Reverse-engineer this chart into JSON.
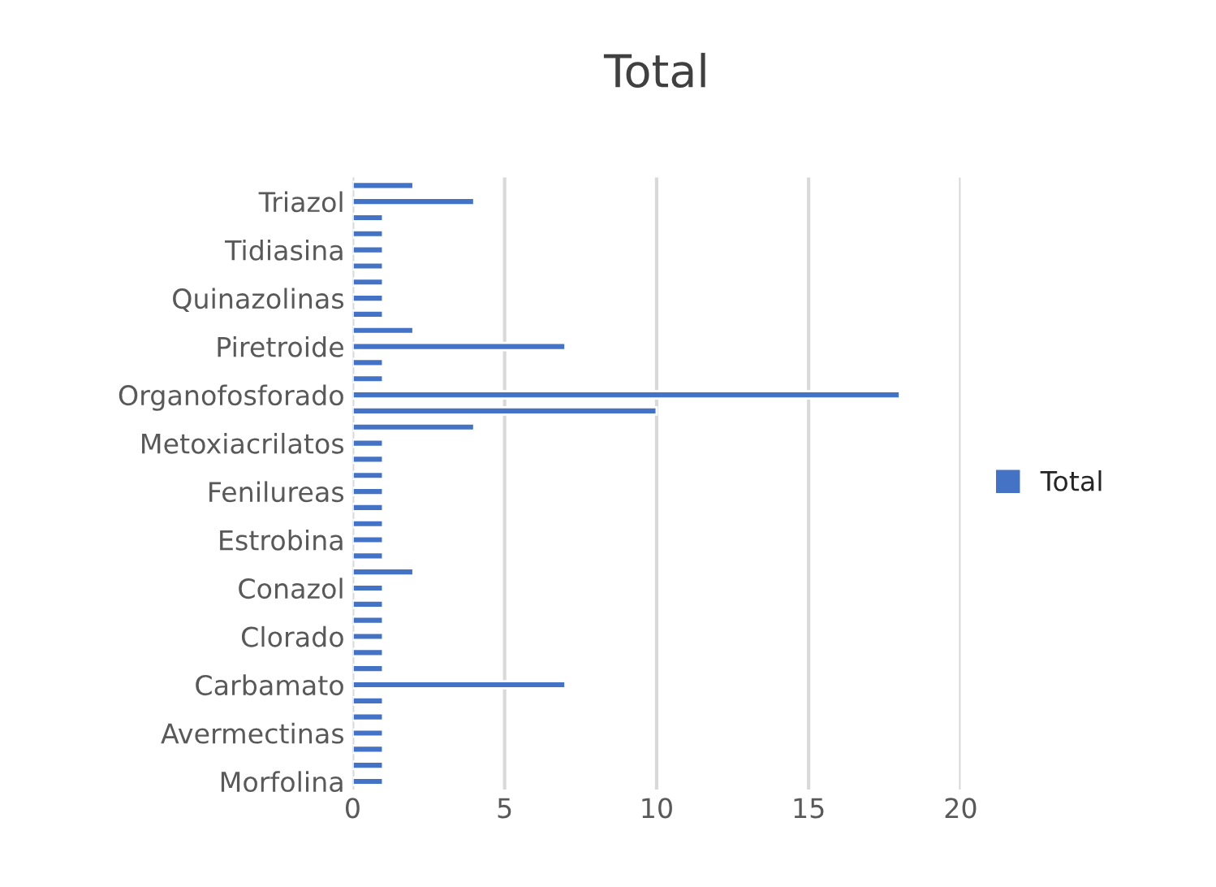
{
  "chart_data": {
    "type": "bar",
    "orientation": "horizontal",
    "title": "Total",
    "categories": [
      null,
      "Triazol",
      null,
      null,
      "Tidiasina",
      null,
      null,
      "Quinazolinas",
      null,
      null,
      "Piretroide",
      null,
      null,
      "Organofosforado",
      null,
      null,
      "Metoxiacrilatos",
      null,
      null,
      "Fenilureas",
      null,
      null,
      "Estrobina",
      null,
      null,
      "Conazol",
      null,
      null,
      "Clorado",
      null,
      null,
      "Carbamato",
      null,
      null,
      "Avermectinas",
      null,
      null,
      "Morfolina"
    ],
    "series": [
      {
        "name": "Total",
        "color": "#4472c4",
        "values": [
          2,
          4,
          1,
          1,
          1,
          1,
          1,
          1,
          1,
          2,
          7,
          1,
          1,
          18,
          10,
          4,
          1,
          1,
          1,
          1,
          1,
          1,
          1,
          1,
          2,
          1,
          1,
          1,
          1,
          1,
          1,
          7,
          1,
          1,
          1,
          1,
          1,
          1
        ]
      }
    ],
    "xlim": [
      0,
      20
    ],
    "xticks": [
      0,
      5,
      10,
      15,
      20
    ],
    "grid": "x",
    "legend": "right"
  }
}
